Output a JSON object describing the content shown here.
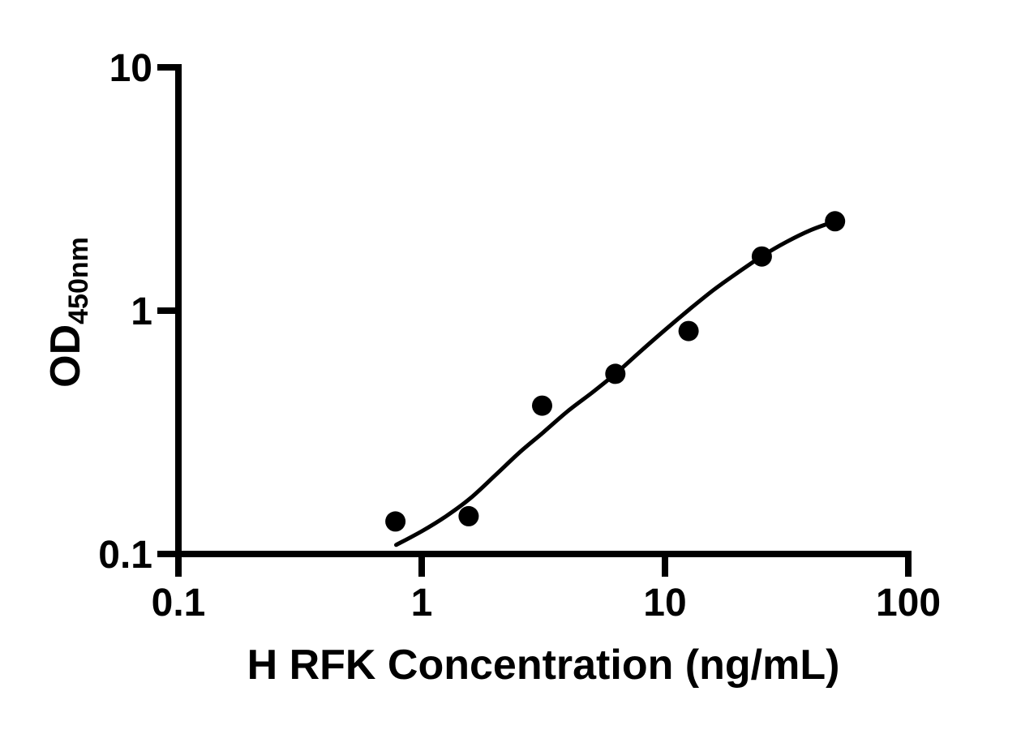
{
  "figure": {
    "background": "#ffffff",
    "ink_color": "#000000"
  },
  "chart_data": {
    "type": "scatter",
    "title": "",
    "xlabel": "H RFK Concentration (ng/mL)",
    "ylabel": {
      "main": "OD",
      "subscript": "450nm"
    },
    "x_scale": "log10",
    "y_scale": "log10",
    "xlim": [
      0.1,
      100
    ],
    "ylim": [
      0.1,
      10
    ],
    "grid": false,
    "legend": "none",
    "x_ticks": [
      {
        "value": 0.1,
        "label": "0.1"
      },
      {
        "value": 1,
        "label": "1"
      },
      {
        "value": 10,
        "label": "10"
      },
      {
        "value": 100,
        "label": "100"
      }
    ],
    "y_ticks": [
      {
        "value": 0.1,
        "label": "0.1"
      },
      {
        "value": 1,
        "label": "1"
      },
      {
        "value": 10,
        "label": "10"
      }
    ],
    "series": [
      {
        "name": "standard-data-points",
        "type": "scatter",
        "marker": "filled-circle",
        "color": "#000000",
        "points": [
          {
            "x": 0.78,
            "y": 0.136
          },
          {
            "x": 1.56,
            "y": 0.143
          },
          {
            "x": 3.125,
            "y": 0.407
          },
          {
            "x": 6.25,
            "y": 0.55
          },
          {
            "x": 12.5,
            "y": 0.825
          },
          {
            "x": 25,
            "y": 1.67
          },
          {
            "x": 50,
            "y": 2.33
          }
        ]
      },
      {
        "name": "fitted-curve",
        "type": "line",
        "color": "#000000",
        "points": [
          {
            "x": 0.785,
            "y": 0.109
          },
          {
            "x": 1.0,
            "y": 0.124
          },
          {
            "x": 1.26,
            "y": 0.143
          },
          {
            "x": 1.58,
            "y": 0.169
          },
          {
            "x": 2.0,
            "y": 0.21
          },
          {
            "x": 2.51,
            "y": 0.26
          },
          {
            "x": 3.16,
            "y": 0.316
          },
          {
            "x": 3.98,
            "y": 0.386
          },
          {
            "x": 5.01,
            "y": 0.46
          },
          {
            "x": 6.31,
            "y": 0.554
          },
          {
            "x": 7.94,
            "y": 0.681
          },
          {
            "x": 10.0,
            "y": 0.833
          },
          {
            "x": 12.6,
            "y": 1.012
          },
          {
            "x": 15.8,
            "y": 1.214
          },
          {
            "x": 20.0,
            "y": 1.438
          },
          {
            "x": 25.1,
            "y": 1.677
          },
          {
            "x": 31.6,
            "y": 1.917
          },
          {
            "x": 39.8,
            "y": 2.144
          },
          {
            "x": 50.0,
            "y": 2.33
          }
        ]
      }
    ]
  }
}
